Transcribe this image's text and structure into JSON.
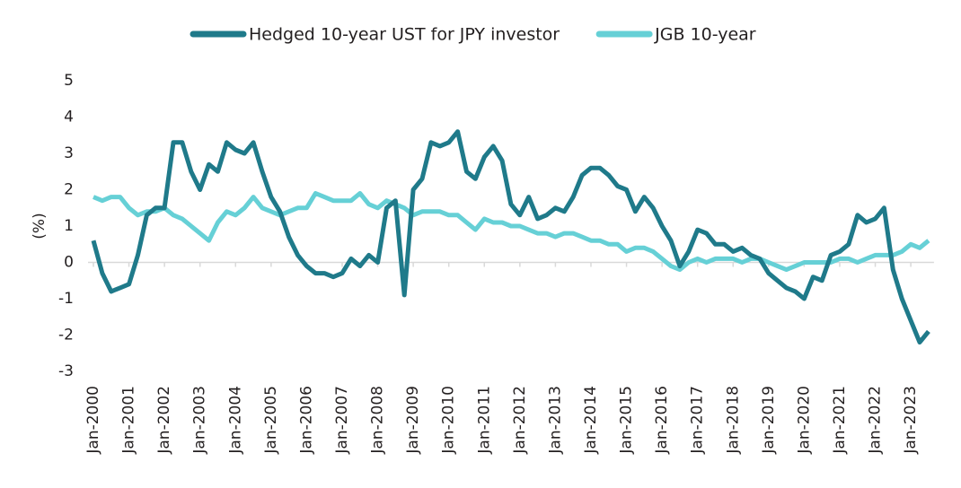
{
  "chart_data": {
    "type": "line",
    "y_label": "(%)",
    "categories": [
      "Jan-2000",
      null,
      null,
      null,
      "Jan-2001",
      null,
      null,
      null,
      "Jan-2002",
      null,
      null,
      null,
      "Jan-2003",
      null,
      null,
      null,
      "Jan-2004",
      null,
      null,
      null,
      "Jan-2005",
      null,
      null,
      null,
      "Jan-2006",
      null,
      null,
      null,
      "Jan-2007",
      null,
      null,
      null,
      "Jan-2008",
      null,
      null,
      null,
      "Jan-2009",
      null,
      null,
      null,
      "Jan-2010",
      null,
      null,
      null,
      "Jan-2011",
      null,
      null,
      null,
      "Jan-2012",
      null,
      null,
      null,
      "Jan-2013",
      null,
      null,
      null,
      "Jan-2014",
      null,
      null,
      null,
      "Jan-2015",
      null,
      null,
      null,
      "Jan-2016",
      null,
      null,
      null,
      "Jan-2017",
      null,
      null,
      null,
      "Jan-2018",
      null,
      null,
      null,
      "Jan-2019",
      null,
      null,
      null,
      "Jan-2020",
      null,
      null,
      null,
      "Jan-2021",
      null,
      null,
      null,
      "Jan-2022",
      null,
      null,
      null,
      "Jan-2023",
      null,
      null
    ],
    "series": [
      {
        "name": "Hedged 10-year UST for JPY investor",
        "color": "#1f7a8a",
        "values": [
          0.6,
          -0.3,
          -0.8,
          -0.7,
          -0.6,
          0.2,
          1.3,
          1.5,
          1.5,
          3.3,
          3.3,
          2.5,
          2.0,
          2.7,
          2.5,
          3.3,
          3.1,
          3.0,
          3.3,
          2.5,
          1.8,
          1.4,
          0.7,
          0.2,
          -0.1,
          -0.3,
          -0.3,
          -0.4,
          -0.3,
          0.1,
          -0.1,
          0.2,
          0.0,
          1.5,
          1.7,
          -0.9,
          2.0,
          2.3,
          3.3,
          3.2,
          3.3,
          3.6,
          2.5,
          2.3,
          2.9,
          3.2,
          2.8,
          1.6,
          1.3,
          1.8,
          1.2,
          1.3,
          1.5,
          1.4,
          1.8,
          2.4,
          2.6,
          2.6,
          2.4,
          2.1,
          2.0,
          1.4,
          1.8,
          1.5,
          1.0,
          0.6,
          -0.1,
          0.3,
          0.9,
          0.8,
          0.5,
          0.5,
          0.3,
          0.4,
          0.2,
          0.1,
          -0.3,
          -0.5,
          -0.7,
          -0.8,
          -1.0,
          -0.4,
          -0.5,
          0.2,
          0.3,
          0.5,
          1.3,
          1.1,
          1.2,
          1.5,
          -0.2,
          -1.0,
          -1.6,
          -2.2,
          -1.9
        ]
      },
      {
        "name": "JGB 10-year",
        "color": "#66d0d6",
        "values": [
          1.8,
          1.7,
          1.8,
          1.8,
          1.5,
          1.3,
          1.4,
          1.4,
          1.5,
          1.3,
          1.2,
          1.0,
          0.8,
          0.6,
          1.1,
          1.4,
          1.3,
          1.5,
          1.8,
          1.5,
          1.4,
          1.3,
          1.4,
          1.5,
          1.5,
          1.9,
          1.8,
          1.7,
          1.7,
          1.7,
          1.9,
          1.6,
          1.5,
          1.7,
          1.6,
          1.5,
          1.3,
          1.4,
          1.4,
          1.4,
          1.3,
          1.3,
          1.1,
          0.9,
          1.2,
          1.1,
          1.1,
          1.0,
          1.0,
          0.9,
          0.8,
          0.8,
          0.7,
          0.8,
          0.8,
          0.7,
          0.6,
          0.6,
          0.5,
          0.5,
          0.3,
          0.4,
          0.4,
          0.3,
          0.1,
          -0.1,
          -0.2,
          0.0,
          0.1,
          0.0,
          0.1,
          0.1,
          0.1,
          0.0,
          0.1,
          0.1,
          0.0,
          -0.1,
          -0.2,
          -0.1,
          0.0,
          0.0,
          0.0,
          0.0,
          0.1,
          0.1,
          0.0,
          0.1,
          0.2,
          0.2,
          0.2,
          0.3,
          0.5,
          0.4,
          0.6
        ]
      }
    ],
    "ylim": [
      -3,
      5
    ],
    "yticks": [
      -3,
      -2,
      -1,
      0,
      1,
      2,
      3,
      4,
      5
    ],
    "grid": false,
    "legend": "top"
  }
}
